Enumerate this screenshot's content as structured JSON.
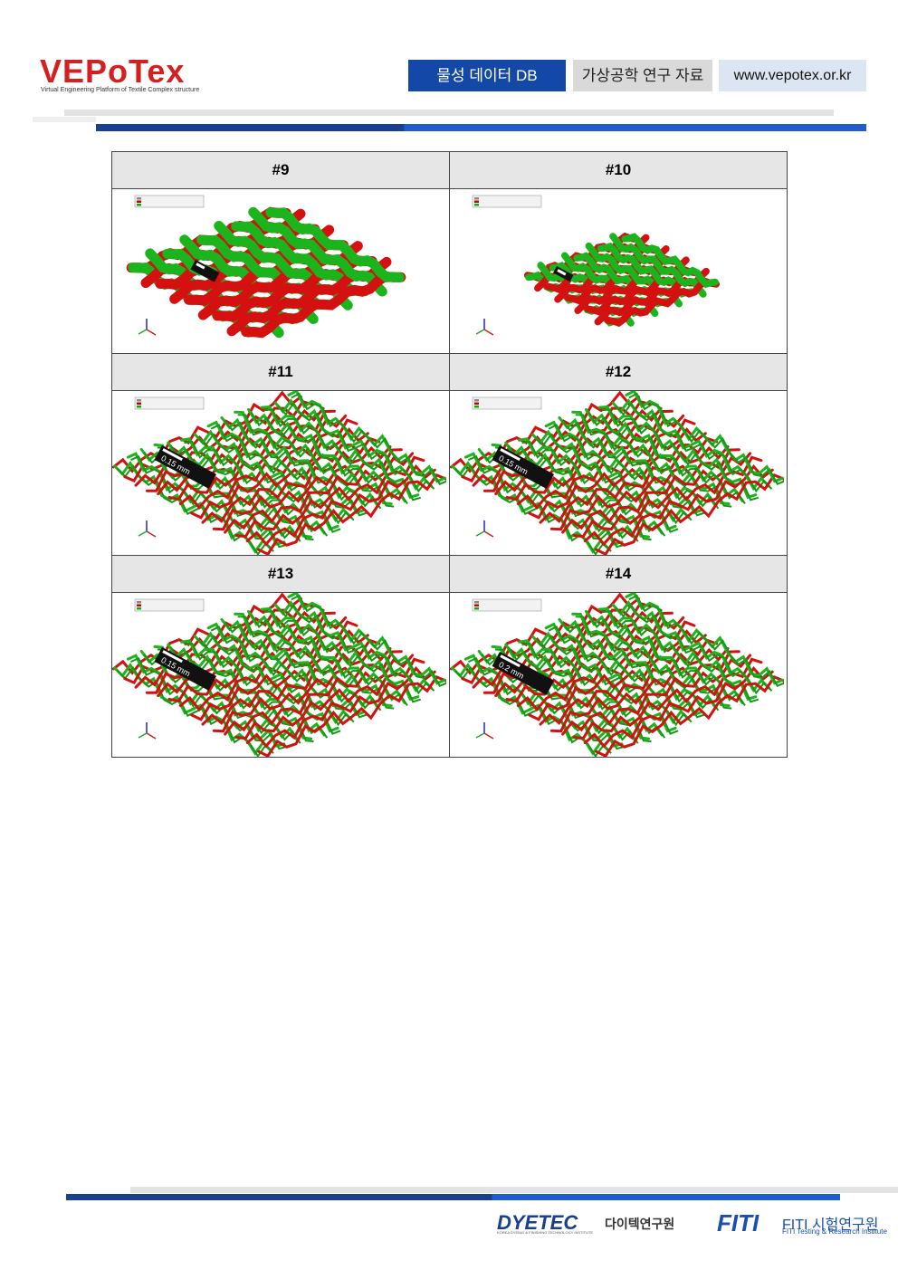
{
  "header": {
    "logo": "VEPoTex",
    "tagline": "Virtual Engineering Platform of Textile Complex structure",
    "nav": [
      "물성 데이터 DB",
      "가상공학 연구 자료",
      "www.vepotex.or.kr"
    ]
  },
  "table": {
    "cells": [
      {
        "label": "#9"
      },
      {
        "label": "#10"
      },
      {
        "label": "#11",
        "scale": "0.15 mm"
      },
      {
        "label": "#12",
        "scale": "0.15 mm"
      },
      {
        "label": "#13",
        "scale": "0.15 mm"
      },
      {
        "label": "#14",
        "scale": "0.2 mm"
      }
    ]
  },
  "footer": {
    "dyetec": "DYETEC",
    "dyetec_kr": "다이텍연구원",
    "dyetec_en": "KOREA DYEING & FINISHING TECHNOLOGY INSTITUTE",
    "fiti": "FITI",
    "fiti_kr": "FITI 시험연구원",
    "fiti_en": "FITI Testing & Research Institute"
  }
}
